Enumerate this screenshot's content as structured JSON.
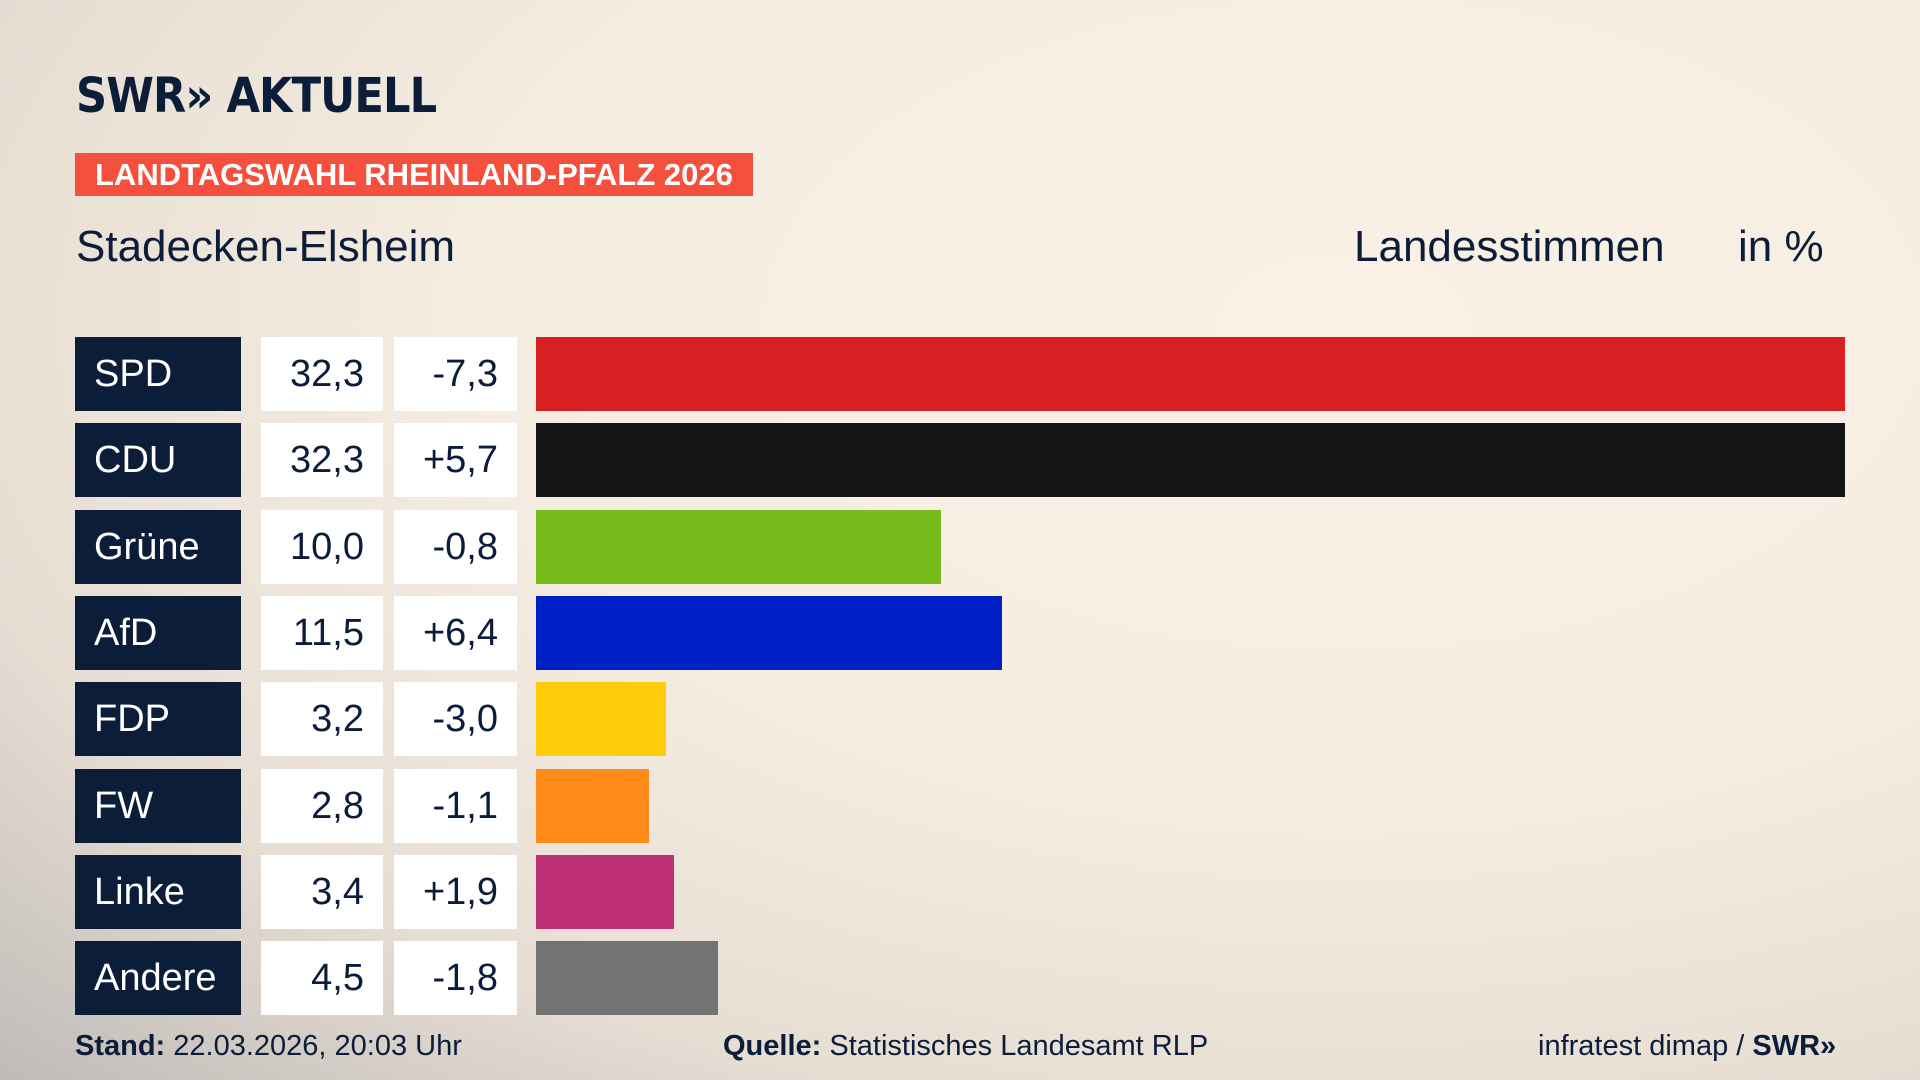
{
  "header": {
    "logo": "SWR» AKTUELL",
    "banner": "LANDTAGSWAHL RHEINLAND-PFALZ 2026",
    "location": "Stadecken-Elsheim",
    "vote_type": "Landesstimmen",
    "unit": "in %"
  },
  "chart_data": {
    "type": "bar",
    "orientation": "horizontal",
    "categories": [
      "SPD",
      "CDU",
      "Grüne",
      "AfD",
      "FDP",
      "FW",
      "Linke",
      "Andere"
    ],
    "values": [
      32.3,
      32.3,
      10.0,
      11.5,
      3.2,
      2.8,
      3.4,
      4.5
    ],
    "value_labels": [
      "32,3",
      "32,3",
      "10,0",
      "11,5",
      "3,2",
      "2,8",
      "3,4",
      "4,5"
    ],
    "diff_labels": [
      "-7,3",
      "+5,7",
      "-0,8",
      "+6,4",
      "-3,0",
      "-1,1",
      "+1,9",
      "-1,8"
    ],
    "colors": [
      "#d81f22",
      "#141414",
      "#78bc1c",
      "#0020c7",
      "#ffcc0a",
      "#ff8c19",
      "#be3075",
      "#737373"
    ],
    "xlim": [
      0,
      32.3
    ]
  },
  "footer": {
    "stand_label": "Stand:",
    "stand_value": "22.03.2026, 20:03 Uhr",
    "quelle_label": "Quelle:",
    "quelle_value": "Statistisches Landesamt RLP",
    "credit": "infratest dimap / ",
    "credit_logo": "SWR»"
  }
}
